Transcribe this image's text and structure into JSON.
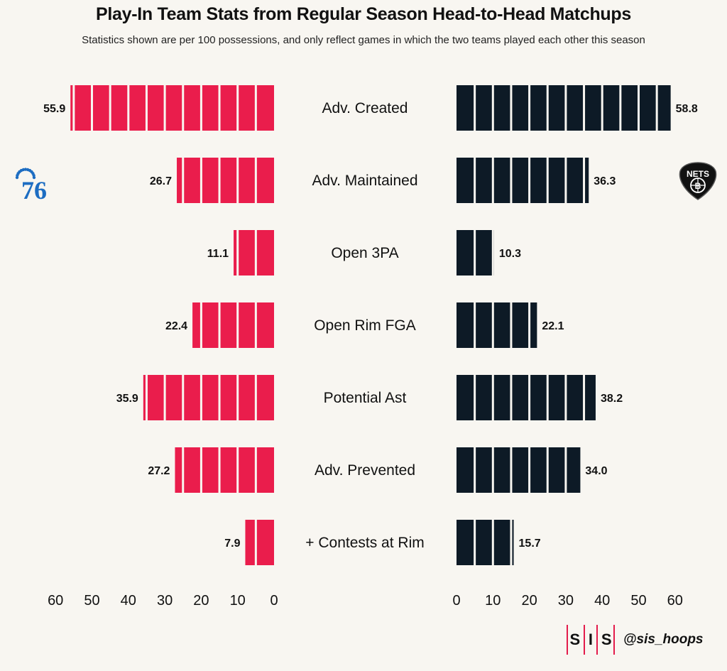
{
  "title": "Play-In Team Stats from Regular Season Head-to-Head Matchups",
  "subtitle": "Statistics shown are per 100 possessions, and only reflect games in which the two teams played each other this season",
  "colors": {
    "left": "#ea1d4c",
    "right": "#0d1a26",
    "background": "#f8f6f1"
  },
  "teams": {
    "left": {
      "logo_text": "76",
      "logo_icon": "sixers-76-logo"
    },
    "right": {
      "logo_text": "NETS",
      "logo_icon": "nets-logo"
    }
  },
  "chart_data": {
    "type": "bar",
    "categories": [
      "Adv. Created",
      "Adv. Maintained",
      "Open 3PA",
      "Open Rim FGA",
      "Potential Ast",
      "Adv. Prevented",
      "+ Contests at Rim"
    ],
    "series": [
      {
        "values": [
          55.9,
          26.7,
          11.1,
          22.4,
          35.9,
          27.2,
          7.9
        ],
        "labels": [
          "55.9",
          "26.7",
          "11.1",
          "22.4",
          "35.9",
          "27.2",
          "7.9"
        ]
      },
      {
        "values": [
          58.8,
          36.3,
          10.3,
          22.1,
          38.2,
          34.0,
          15.7
        ],
        "labels": [
          "58.8",
          "36.3",
          "10.3",
          "22.1",
          "38.2",
          "34.0",
          "15.7"
        ]
      }
    ],
    "xlim": [
      0,
      60
    ],
    "ticks": [
      0,
      10,
      20,
      30,
      40,
      50,
      60
    ],
    "segment_size": 5,
    "grid": false,
    "legend": "none"
  },
  "footer": {
    "sis_letters": [
      "S",
      "I",
      "S"
    ],
    "handle": "@sis_hoops"
  }
}
